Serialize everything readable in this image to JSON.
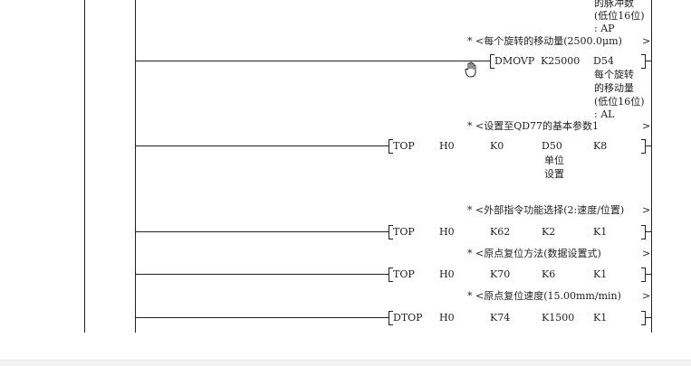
{
  "top_notes": [
    "的脉冲数",
    "(低位16位)",
    ": AP"
  ],
  "comments": [
    "* <每个旋转的移动量(2500.0μm)",
    ">",
    "* <设置至QD77的基本参数1",
    ">",
    "* <外部指令功能选择(2:速度/位置)",
    ">",
    "* <原点复位方法(数据设置式)",
    ">",
    "* <原点复位速度(15.00mm/min)",
    ">"
  ],
  "rows": [
    {
      "ins": "DMOVP",
      "a": "K25000",
      "b": "D54",
      "notes": [
        "每个旋转",
        "的移动量",
        "(低位16位)",
        ": AL"
      ]
    },
    {
      "ins": "TOP",
      "a": "H0",
      "b": "K0",
      "c": "D50",
      "d": "K8",
      "notes": [
        "单位",
        "设置"
      ]
    },
    {
      "ins": "TOP",
      "a": "H0",
      "b": "K62",
      "c": "K2",
      "d": "K1"
    },
    {
      "ins": "TOP",
      "a": "H0",
      "b": "K70",
      "c": "K6",
      "d": "K1"
    },
    {
      "ins": "DTOP",
      "a": "H0",
      "b": "K74",
      "c": "K1500",
      "d": "K1"
    }
  ],
  "cursor_icon": "hand-cursor-icon"
}
